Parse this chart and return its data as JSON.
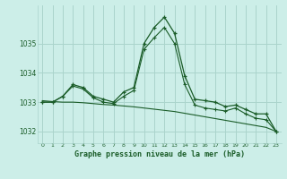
{
  "title": "Graphe pression niveau de la mer (hPa)",
  "bg_color": "#cceee8",
  "grid_color": "#aad4cc",
  "line_color": "#1a5c28",
  "x_labels": [
    "0",
    "1",
    "2",
    "3",
    "4",
    "5",
    "6",
    "7",
    "8",
    "9",
    "10",
    "11",
    "12",
    "13",
    "14",
    "15",
    "16",
    "17",
    "18",
    "19",
    "20",
    "21",
    "22",
    "23"
  ],
  "ylim": [
    1031.6,
    1036.3
  ],
  "yticks": [
    1032,
    1033,
    1034,
    1035
  ],
  "series_main": [
    1033.0,
    1033.0,
    1033.2,
    1033.6,
    1033.5,
    1033.2,
    1033.1,
    1033.0,
    1033.35,
    1033.5,
    1035.0,
    1035.55,
    1035.9,
    1035.35,
    1033.9,
    1033.1,
    1033.05,
    1033.0,
    1032.85,
    1032.9,
    1032.75,
    1032.6,
    1032.6,
    1032.0
  ],
  "series_high": [
    1033.0,
    1033.0,
    1033.2,
    1033.55,
    1033.45,
    1033.15,
    1033.0,
    1032.95,
    1033.2,
    1033.4,
    1034.8,
    1035.2,
    1035.55,
    1035.0,
    1033.6,
    1032.9,
    1032.8,
    1032.75,
    1032.7,
    1032.8,
    1032.6,
    1032.45,
    1032.4,
    1032.0
  ],
  "series_trend": [
    1033.05,
    1033.02,
    1033.0,
    1033.0,
    1032.98,
    1032.95,
    1032.92,
    1032.9,
    1032.87,
    1032.84,
    1032.8,
    1032.76,
    1032.72,
    1032.68,
    1032.62,
    1032.56,
    1032.5,
    1032.44,
    1032.38,
    1032.32,
    1032.26,
    1032.2,
    1032.14,
    1032.0
  ]
}
